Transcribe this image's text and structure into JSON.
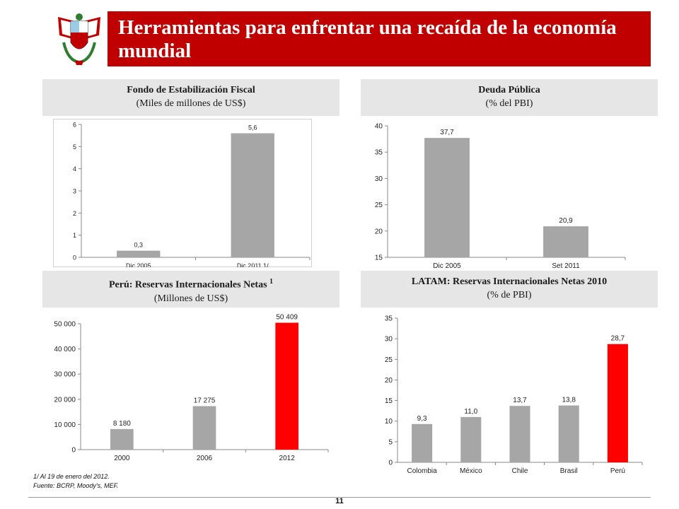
{
  "header": {
    "title": "Herramientas para enfrentar una recaída de la economía mundial"
  },
  "colors": {
    "brand_red": "#c00000",
    "bar_gray": "#a6a6a6",
    "bar_red": "#ff0000",
    "panel_gray": "#e6e6e6"
  },
  "panels": {
    "fef": {
      "title": "Fondo de Estabilización Fiscal",
      "subtitle": "(Miles de millones de US$)"
    },
    "deuda": {
      "title": "Deuda Pública",
      "subtitle": "(% del PBI)"
    },
    "rin": {
      "title": "Perú: Reservas Internacionales Netas",
      "title_sup": "1",
      "subtitle": "(Millones de US$)"
    },
    "latam": {
      "title": "LATAM: Reservas Internacionales Netas 2010",
      "subtitle": "(% de PBI)"
    }
  },
  "chart_data": [
    {
      "id": "fef",
      "type": "bar",
      "categories": [
        "Dic 2005",
        "Dic 2011 1/"
      ],
      "values": [
        0.3,
        5.6
      ],
      "labels": [
        "0,3",
        "5,6"
      ],
      "ylim": [
        0,
        6
      ],
      "yticks": [
        "0",
        "1",
        "2",
        "3",
        "4",
        "5",
        "6"
      ],
      "bar_colors": [
        "#a6a6a6",
        "#a6a6a6"
      ],
      "grid": false
    },
    {
      "id": "deuda",
      "type": "bar",
      "categories": [
        "Dic 2005",
        "Set 2011"
      ],
      "values": [
        37.7,
        20.9
      ],
      "labels": [
        "37,7",
        "20,9"
      ],
      "ylim": [
        15,
        40
      ],
      "yticks": [
        "15",
        "20",
        "25",
        "30",
        "35",
        "40"
      ],
      "bar_colors": [
        "#a6a6a6",
        "#a6a6a6"
      ],
      "grid": false
    },
    {
      "id": "rin",
      "type": "bar",
      "categories": [
        "2000",
        "2006",
        "2012"
      ],
      "values": [
        8180,
        17275,
        50409
      ],
      "labels": [
        "8 180",
        "17 275",
        "50 409"
      ],
      "ylim": [
        0,
        50000
      ],
      "yticks": [
        "0",
        "10 000",
        "20 000",
        "30 000",
        "40 000",
        "50 000"
      ],
      "bar_colors": [
        "#a6a6a6",
        "#a6a6a6",
        "#ff0000"
      ],
      "grid": false
    },
    {
      "id": "latam",
      "type": "bar",
      "categories": [
        "Colombia",
        "México",
        "Chile",
        "Brasil",
        "Perú"
      ],
      "values": [
        9.3,
        11.0,
        13.7,
        13.8,
        28.7
      ],
      "labels": [
        "9,3",
        "11,0",
        "13,7",
        "13,8",
        "28,7"
      ],
      "ylim": [
        0,
        35
      ],
      "yticks": [
        "0",
        "5",
        "10",
        "15",
        "20",
        "25",
        "30",
        "35"
      ],
      "bar_colors": [
        "#a6a6a6",
        "#a6a6a6",
        "#a6a6a6",
        "#a6a6a6",
        "#ff0000"
      ],
      "grid": false
    }
  ],
  "notes": {
    "footnote": "1/ Al 19 de enero del 2012.",
    "source": "Fuente: BCRP, Moody's, MEF."
  },
  "footer": {
    "page_number": "11"
  }
}
